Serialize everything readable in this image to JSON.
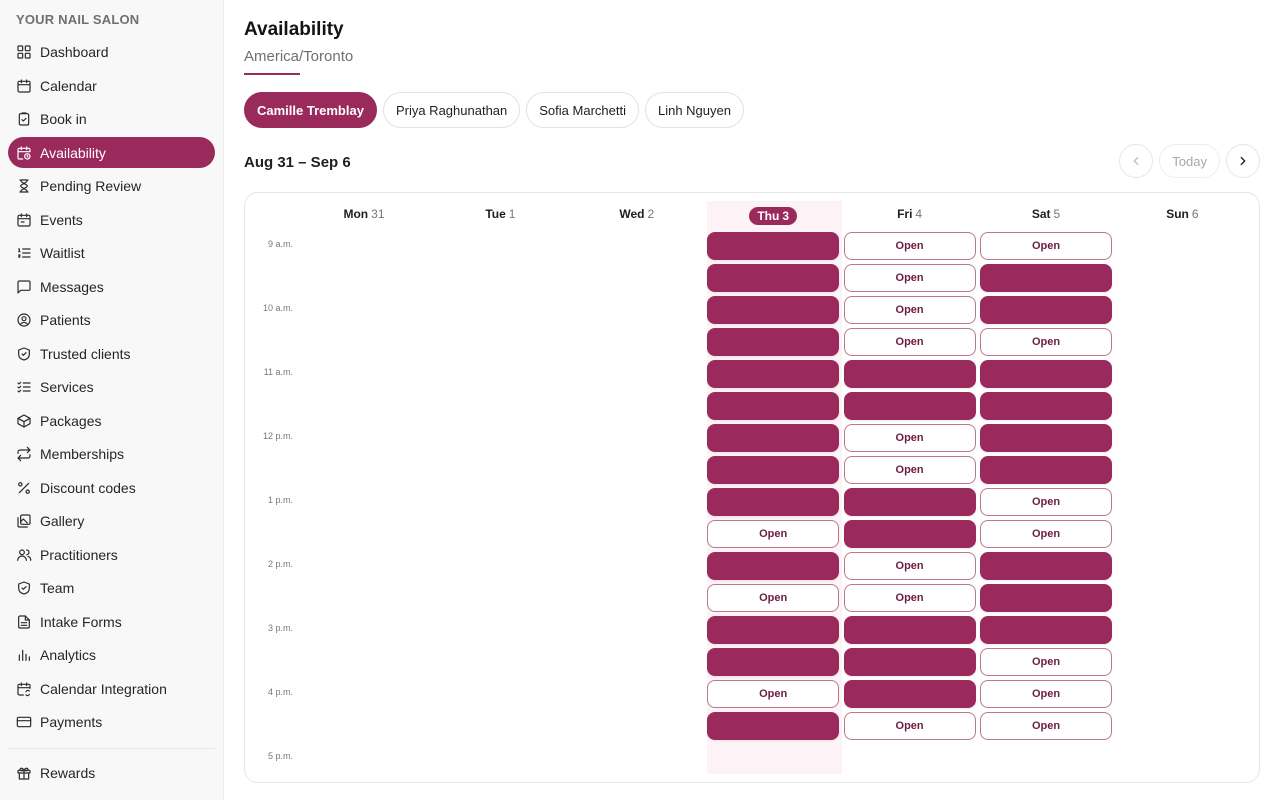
{
  "brand": "YOUR NAIL SALON",
  "accent_color": "#9b2a5c",
  "sidebar": {
    "items": [
      {
        "label": "Dashboard",
        "icon": "grid-icon"
      },
      {
        "label": "Calendar",
        "icon": "calendar-icon"
      },
      {
        "label": "Book in",
        "icon": "clipboard-icon"
      },
      {
        "label": "Availability",
        "icon": "calendar-clock-icon",
        "active": true
      },
      {
        "label": "Pending Review",
        "icon": "hourglass-icon"
      },
      {
        "label": "Events",
        "icon": "calendar-event-icon"
      },
      {
        "label": "Waitlist",
        "icon": "list-ordered-icon"
      },
      {
        "label": "Messages",
        "icon": "message-icon"
      },
      {
        "label": "Patients",
        "icon": "user-circle-icon"
      },
      {
        "label": "Trusted clients",
        "icon": "shield-check-icon"
      },
      {
        "label": "Services",
        "icon": "list-checks-icon"
      },
      {
        "label": "Packages",
        "icon": "package-icon"
      },
      {
        "label": "Memberships",
        "icon": "repeat-icon"
      },
      {
        "label": "Discount codes",
        "icon": "percent-icon"
      },
      {
        "label": "Gallery",
        "icon": "images-icon"
      },
      {
        "label": "Practitioners",
        "icon": "users-icon"
      },
      {
        "label": "Team",
        "icon": "shield-icon"
      },
      {
        "label": "Intake Forms",
        "icon": "file-text-icon"
      },
      {
        "label": "Analytics",
        "icon": "bar-chart-icon"
      },
      {
        "label": "Calendar Integration",
        "icon": "calendar-sync-icon"
      },
      {
        "label": "Payments",
        "icon": "credit-card-icon"
      }
    ],
    "bottom_items": [
      {
        "label": "Rewards",
        "icon": "gift-icon"
      }
    ]
  },
  "header": {
    "title": "Availability",
    "timezone": "America/Toronto"
  },
  "practitioners": [
    {
      "name": "Camille Tremblay",
      "active": true
    },
    {
      "name": "Priya Raghunathan"
    },
    {
      "name": "Sofia Marchetti"
    },
    {
      "name": "Linh Nguyen"
    }
  ],
  "week": {
    "range": "Aug 31 – Sep 6",
    "today_label": "Today"
  },
  "calendar": {
    "days": [
      {
        "name": "Mon",
        "date": "31"
      },
      {
        "name": "Tue",
        "date": "1"
      },
      {
        "name": "Wed",
        "date": "2"
      },
      {
        "name": "Thu",
        "date": "3",
        "today": true
      },
      {
        "name": "Fri",
        "date": "4"
      },
      {
        "name": "Sat",
        "date": "5"
      },
      {
        "name": "Sun",
        "date": "6"
      }
    ],
    "time_labels": [
      "9 a.m.",
      "10 a.m.",
      "11 a.m.",
      "12 p.m.",
      "1 p.m.",
      "2 p.m.",
      "3 p.m.",
      "4 p.m.",
      "5 p.m."
    ],
    "open_label": "Open",
    "slot_columns": [
      {
        "day": "Thu",
        "slots": [
          "booked",
          "booked",
          "booked",
          "booked",
          "booked",
          "booked",
          "booked",
          "booked",
          "booked",
          "open",
          "booked",
          "open",
          "booked",
          "booked",
          "open",
          "booked"
        ]
      },
      {
        "day": "Fri",
        "slots": [
          "open",
          "open",
          "open",
          "open",
          "booked",
          "booked",
          "open",
          "open",
          "booked",
          "booked",
          "open",
          "open",
          "booked",
          "booked",
          "booked",
          "open"
        ]
      },
      {
        "day": "Sat",
        "slots": [
          "open",
          "booked",
          "booked",
          "open",
          "booked",
          "booked",
          "booked",
          "booked",
          "open",
          "open",
          "booked",
          "booked",
          "booked",
          "open",
          "open",
          "open"
        ]
      }
    ]
  }
}
